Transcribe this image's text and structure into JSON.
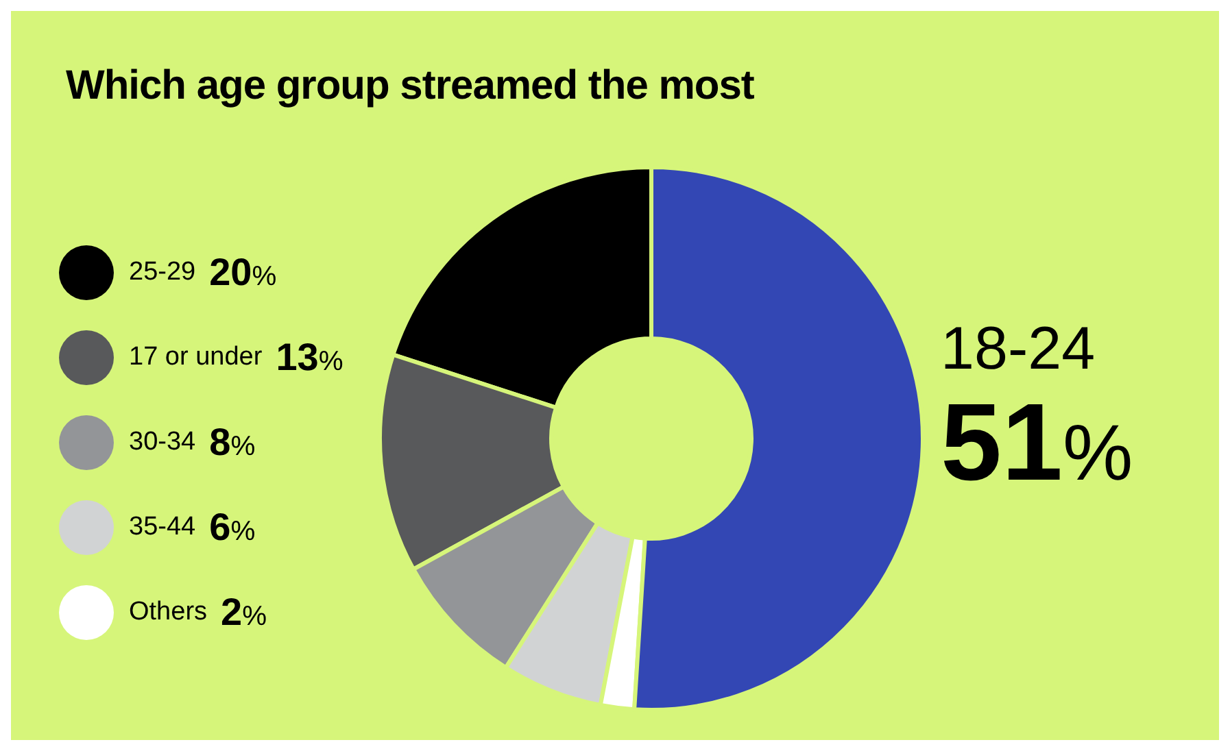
{
  "chart_data": {
    "type": "donut",
    "title": "Which age group streamed the most",
    "categories": [
      "25-29",
      "17 or under",
      "30-34",
      "35-44",
      "Others",
      "18-24"
    ],
    "values": [
      20,
      13,
      8,
      6,
      2,
      51
    ],
    "value_labels": [
      "20%",
      "13%",
      "8%",
      "6%",
      "2%",
      "51%"
    ],
    "colors": [
      "#000000",
      "#58595b",
      "#939598",
      "#d1d3d4",
      "#ffffff",
      "#3347b4"
    ],
    "legend": "left"
  }
}
